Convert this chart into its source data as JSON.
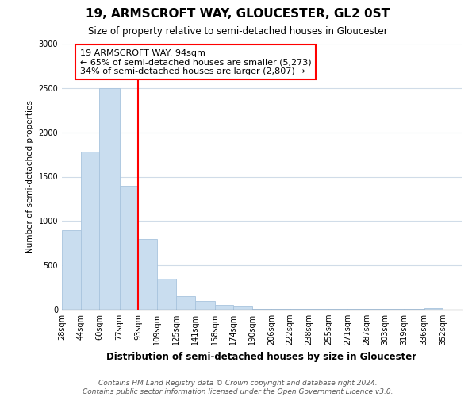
{
  "title": "19, ARMSCROFT WAY, GLOUCESTER, GL2 0ST",
  "subtitle": "Size of property relative to semi-detached houses in Gloucester",
  "xlabel": "Distribution of semi-detached houses by size in Gloucester",
  "ylabel": "Number of semi-detached properties",
  "bin_labels": [
    "28sqm",
    "44sqm",
    "60sqm",
    "77sqm",
    "93sqm",
    "109sqm",
    "125sqm",
    "141sqm",
    "158sqm",
    "174sqm",
    "190sqm",
    "206sqm",
    "222sqm",
    "238sqm",
    "255sqm",
    "271sqm",
    "287sqm",
    "303sqm",
    "319sqm",
    "336sqm",
    "352sqm"
  ],
  "bin_edges": [
    28,
    44,
    60,
    77,
    93,
    109,
    125,
    141,
    158,
    174,
    190,
    206,
    222,
    238,
    255,
    271,
    287,
    303,
    319,
    336,
    352
  ],
  "bar_values": [
    900,
    1780,
    2500,
    1400,
    800,
    350,
    155,
    100,
    55,
    35,
    10,
    5,
    5,
    5,
    5,
    5,
    5,
    5,
    5,
    20
  ],
  "bar_color": "#c9ddef",
  "bar_edgecolor": "#a8c4de",
  "property_line_x": 93,
  "property_line_label": "19 ARMSCROFT WAY: 94sqm",
  "annotation_line1": "← 65% of semi-detached houses are smaller (5,273)",
  "annotation_line2": "34% of semi-detached houses are larger (2,807) →",
  "annotation_box_color": "white",
  "annotation_box_edgecolor": "red",
  "vline_color": "red",
  "ylim": [
    0,
    3000
  ],
  "yticks": [
    0,
    500,
    1000,
    1500,
    2000,
    2500,
    3000
  ],
  "footer_line1": "Contains HM Land Registry data © Crown copyright and database right 2024.",
  "footer_line2": "Contains public sector information licensed under the Open Government Licence v3.0.",
  "background_color": "white",
  "grid_color": "#d0dce8",
  "title_fontsize": 11,
  "subtitle_fontsize": 8.5,
  "xlabel_fontsize": 8.5,
  "ylabel_fontsize": 7.5,
  "tick_fontsize": 7,
  "footer_fontsize": 6.5,
  "annotation_fontsize": 8
}
